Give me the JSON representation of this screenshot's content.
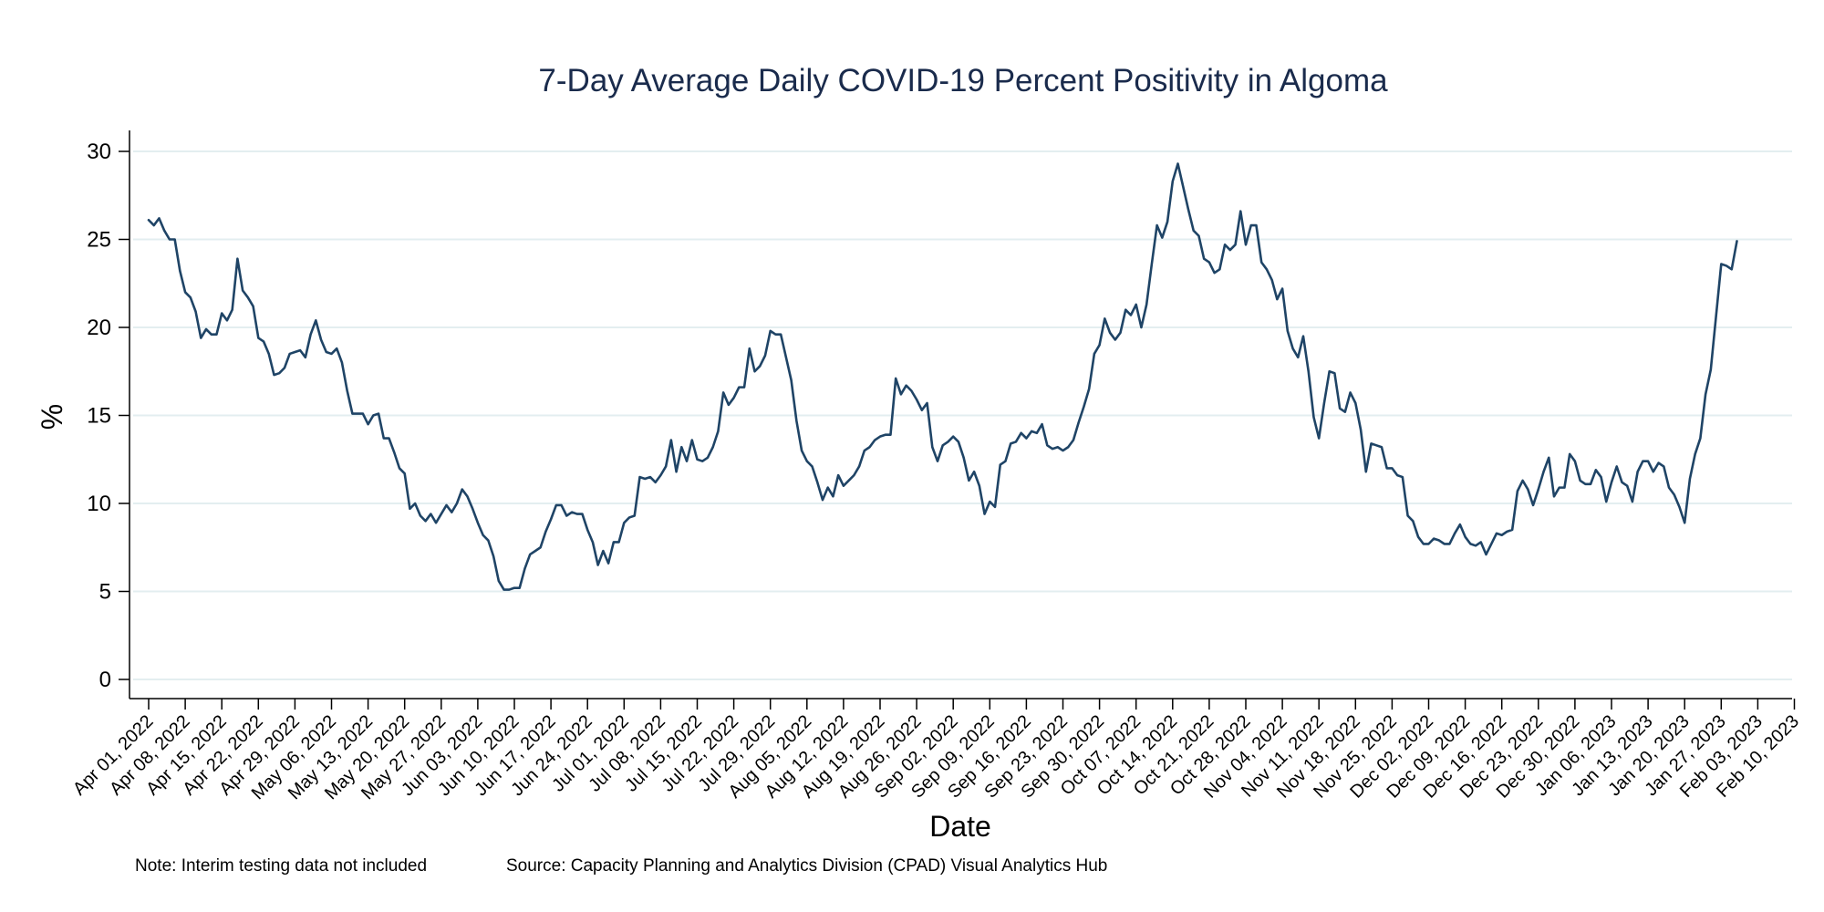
{
  "chart_data": {
    "type": "line",
    "title": "7-Day Average Daily COVID-19 Percent Positivity in Algoma",
    "xlabel": "Date",
    "ylabel": "%",
    "ylim": [
      0,
      30
    ],
    "yticks": [
      0,
      5,
      10,
      15,
      20,
      25,
      30
    ],
    "grid": true,
    "line_color": "#1f4466",
    "xticks": [
      "Apr 01, 2022",
      "Apr 08, 2022",
      "Apr 15, 2022",
      "Apr 22, 2022",
      "Apr 29, 2022",
      "May 06, 2022",
      "May 13, 2022",
      "May 20, 2022",
      "May 27, 2022",
      "Jun 03, 2022",
      "Jun 10, 2022",
      "Jun 17, 2022",
      "Jun 24, 2022",
      "Jul 01, 2022",
      "Jul 08, 2022",
      "Jul 15, 2022",
      "Jul 22, 2022",
      "Jul 29, 2022",
      "Aug 05, 2022",
      "Aug 12, 2022",
      "Aug 19, 2022",
      "Aug 26, 2022",
      "Sep 02, 2022",
      "Sep 09, 2022",
      "Sep 16, 2022",
      "Sep 23, 2022",
      "Sep 30, 2022",
      "Oct 07, 2022",
      "Oct 14, 2022",
      "Oct 21, 2022",
      "Oct 28, 2022",
      "Nov 04, 2022",
      "Nov 11, 2022",
      "Nov 18, 2022",
      "Nov 25, 2022",
      "Dec 02, 2022",
      "Dec 09, 2022",
      "Dec 16, 2022",
      "Dec 23, 2022",
      "Dec 30, 2022",
      "Jan 06, 2023",
      "Jan 13, 2023",
      "Jan 20, 2023",
      "Jan 27, 2023",
      "Feb 03, 2023",
      "Feb 10, 2023"
    ],
    "series": [
      {
        "x_start": "Apr 01, 2022",
        "values": [
          26.1,
          25.8,
          26.2,
          25.5,
          25.0,
          25.0,
          23.2,
          22.0,
          21.7,
          20.9,
          19.4,
          19.9,
          19.6,
          19.6,
          20.8,
          20.4,
          21.0,
          23.9,
          22.1,
          21.7,
          21.2,
          19.4,
          19.2,
          18.5,
          17.3,
          17.4,
          17.7,
          18.5,
          18.6,
          18.7,
          18.3,
          19.6,
          20.4,
          19.3,
          18.6,
          18.5,
          18.8,
          18.0,
          16.4,
          15.1,
          15.1,
          15.1,
          14.5,
          15.0,
          15.1,
          13.7,
          13.7,
          12.9,
          12.0,
          11.7,
          9.7,
          10.0,
          9.3,
          9.0,
          9.4,
          8.9,
          9.4,
          9.9,
          9.5,
          10.0,
          10.8,
          10.4,
          9.7,
          8.9,
          8.2,
          7.9,
          7.0,
          5.6,
          5.1,
          5.1,
          5.2,
          5.2,
          6.3,
          7.1,
          7.3,
          7.5,
          8.4,
          9.1,
          9.9,
          9.9,
          9.3,
          9.5,
          9.4,
          9.4,
          8.5,
          7.8,
          6.5,
          7.3,
          6.6,
          7.8,
          7.8,
          8.9,
          9.2,
          9.3,
          11.5,
          11.4,
          11.5,
          11.2,
          11.6,
          12.1,
          13.6,
          11.8,
          13.2,
          12.4,
          13.6,
          12.5,
          12.4,
          12.6,
          13.2,
          14.1,
          16.3,
          15.6,
          16.0,
          16.6,
          16.6,
          18.8,
          17.5,
          17.8,
          18.4,
          19.8,
          19.6,
          19.6,
          18.3,
          17.0,
          14.7,
          13.0,
          12.4,
          12.1,
          11.2,
          10.2,
          10.9,
          10.4,
          11.6,
          11.0,
          11.3,
          11.6,
          12.1,
          13.0,
          13.2,
          13.6,
          13.8,
          13.9,
          13.9,
          17.1,
          16.2,
          16.7,
          16.4,
          15.9,
          15.3,
          15.7,
          13.2,
          12.4,
          13.3,
          13.5,
          13.8,
          13.5,
          12.6,
          11.3,
          11.8,
          11.0,
          9.4,
          10.1,
          9.8,
          12.2,
          12.4,
          13.4,
          13.5,
          14.0,
          13.7,
          14.1,
          14.0,
          14.5,
          13.3,
          13.1,
          13.2,
          13.0,
          13.2,
          13.6,
          14.6,
          15.5,
          16.5,
          18.5,
          19.0,
          20.5,
          19.7,
          19.3,
          19.7,
          21.0,
          20.7,
          21.3,
          20.0,
          21.3,
          23.6,
          25.8,
          25.1,
          26.0,
          28.3,
          29.3,
          28.0,
          26.7,
          25.5,
          25.2,
          23.9,
          23.7,
          23.1,
          23.3,
          24.7,
          24.4,
          24.7,
          26.6,
          24.7,
          25.8,
          25.8,
          23.7,
          23.3,
          22.7,
          21.6,
          22.2,
          19.8,
          18.8,
          18.3,
          19.5,
          17.5,
          14.9,
          13.7,
          15.7,
          17.5,
          17.4,
          15.4,
          15.2,
          16.3,
          15.7,
          14.2,
          11.8,
          13.4,
          13.3,
          13.2,
          12.0,
          12.0,
          11.6,
          11.5,
          9.3,
          9.0,
          8.1,
          7.7,
          7.7,
          8.0,
          7.9,
          7.7,
          7.7,
          8.3,
          8.8,
          8.1,
          7.7,
          7.6,
          7.8,
          7.1,
          7.7,
          8.3,
          8.2,
          8.4,
          8.5,
          10.7,
          11.3,
          10.8,
          9.9,
          10.8,
          11.8,
          12.6,
          10.4,
          10.9,
          10.9,
          12.8,
          12.4,
          11.3,
          11.1,
          11.1,
          11.9,
          11.5,
          10.1,
          11.2,
          12.1,
          11.2,
          11.0,
          10.1,
          11.8,
          12.4,
          12.4,
          11.8,
          12.3,
          12.1,
          10.9,
          10.5,
          9.8,
          8.9,
          11.4,
          12.8,
          13.7,
          16.2,
          17.6,
          20.6,
          23.6,
          23.5,
          23.3,
          24.9
        ]
      }
    ]
  },
  "footnotes": {
    "note": "Note: Interim testing data not included",
    "source": "Source: Capacity Planning and Analytics Division (CPAD) Visual Analytics Hub"
  }
}
